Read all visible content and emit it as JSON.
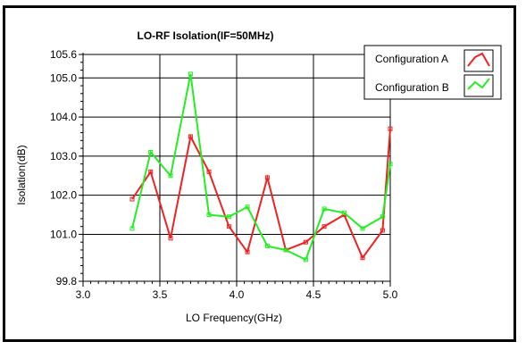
{
  "chart_data": {
    "type": "line",
    "title": "LO-RF Isolation(IF=50MHz)",
    "xlabel": "LO Frequency(GHz)",
    "ylabel": "Isolation(dB)",
    "xlim": [
      3.0,
      5.0
    ],
    "ylim": [
      99.8,
      105.6
    ],
    "xticks": [
      "3.0",
      "3.5",
      "4.0",
      "4.5",
      "5.0"
    ],
    "yticks": [
      "99.8",
      "101.0",
      "102.0",
      "103.0",
      "104.0",
      "105.0",
      "105.6"
    ],
    "grid": true,
    "legend_position": "top-right",
    "series": [
      {
        "name": "Configuration A",
        "color": "#ee2222",
        "x": [
          3.32,
          3.44,
          3.57,
          3.7,
          3.82,
          3.95,
          4.07,
          4.2,
          4.32,
          4.45,
          4.57,
          4.7,
          4.82,
          4.95,
          5.0
        ],
        "y": [
          101.9,
          102.6,
          100.9,
          103.5,
          102.6,
          101.2,
          100.55,
          102.45,
          100.6,
          100.8,
          101.2,
          101.5,
          100.4,
          101.1,
          103.7
        ]
      },
      {
        "name": "Configuration B",
        "color": "#22ee22",
        "x": [
          3.32,
          3.44,
          3.57,
          3.7,
          3.82,
          3.95,
          4.07,
          4.2,
          4.32,
          4.45,
          4.57,
          4.7,
          4.82,
          4.95,
          5.0
        ],
        "y": [
          101.15,
          103.1,
          102.5,
          105.1,
          101.5,
          101.45,
          101.7,
          100.7,
          100.6,
          100.35,
          101.65,
          101.55,
          101.15,
          101.45,
          102.8
        ]
      }
    ]
  }
}
